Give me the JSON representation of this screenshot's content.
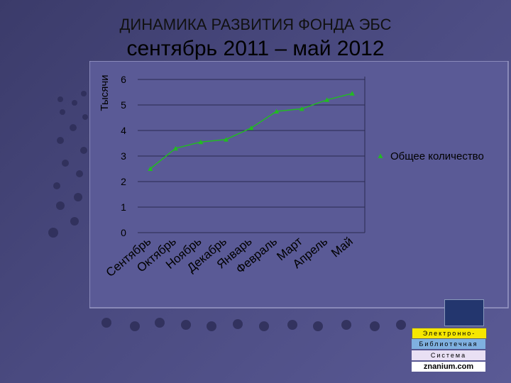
{
  "slide": {
    "title_line1": "ДИНАМИКА РАЗВИТИЯ ФОНДА ЭБС",
    "title_line2": "сентябрь 2011 – май 2012"
  },
  "logo": {
    "line1": "Электронно-",
    "line2": "Библиотечная",
    "line3": "Система",
    "line4": "znanium.com"
  },
  "chart_data": {
    "type": "line",
    "categories": [
      "Сентябрь",
      "Октябрь",
      "Ноябрь",
      "Декабрь",
      "Январь",
      "Февраль",
      "Март",
      "Апрель",
      "Май"
    ],
    "series": [
      {
        "name": "Общее количество",
        "values": [
          2.5,
          3.3,
          3.55,
          3.65,
          4.1,
          4.75,
          4.85,
          5.2,
          5.45
        ]
      }
    ],
    "ylabel": "Тысячи",
    "xlabel": "",
    "ylim": [
      0,
      6
    ],
    "yticks": [
      "0",
      "1",
      "2",
      "3",
      "4",
      "5",
      "6"
    ],
    "grid": true,
    "legend_position": "right",
    "colors": {
      "line": "#22bb22",
      "plot_bg": "#5a5a96",
      "frame": "#9a9ac6"
    }
  }
}
